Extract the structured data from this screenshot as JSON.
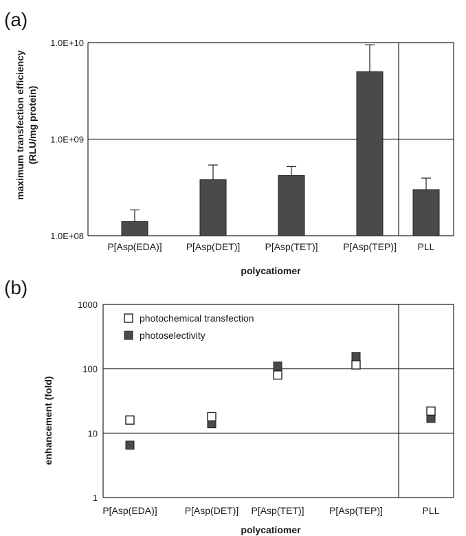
{
  "chart_data": [
    {
      "type": "bar",
      "panel_label": "(a)",
      "categories": [
        "P[Asp(EDA)]",
        "P[Asp(DET)]",
        "P[Asp(TET)]",
        "P[Asp(TEP)]",
        "PLL"
      ],
      "values": [
        140000000,
        380000000,
        420000000,
        5000000000,
        300000000
      ],
      "error_plus": [
        45000000,
        160000000,
        100000000,
        4500000000,
        95000000
      ],
      "xlabel": "polycatiomer",
      "ylabel_line1": "maximum transfection efficiency",
      "ylabel_line2": "(RLU/mg protein)",
      "yscale": "log",
      "ylim": [
        100000000,
        10000000000
      ],
      "yticks": [
        {
          "value": 100000000,
          "label": "1.0E+08"
        },
        {
          "value": 1000000000,
          "label": "1.0E+09"
        },
        {
          "value": 10000000000,
          "label": "1.0E+10"
        }
      ],
      "grid": true,
      "bar_color": "#4a4a4a"
    },
    {
      "type": "scatter",
      "panel_label": "(b)",
      "categories": [
        "P[Asp(EDA)]",
        "P[Asp(DET)]",
        "P[Asp(TET)]",
        "P[Asp(TEP)]",
        "PLL"
      ],
      "series": [
        {
          "name": "photochemical transfection",
          "values": [
            16,
            18,
            80,
            115,
            22
          ],
          "marker": "open-square"
        },
        {
          "name": "photoselectivity",
          "values": [
            6.5,
            14,
            110,
            155,
            17
          ],
          "marker": "filled-square"
        }
      ],
      "xlabel": "polycatiomer",
      "ylabel": "enhancement (fold)",
      "yscale": "log",
      "ylim": [
        1,
        1000
      ],
      "yticks": [
        {
          "value": 1,
          "label": "1"
        },
        {
          "value": 10,
          "label": "10"
        },
        {
          "value": 100,
          "label": "100"
        },
        {
          "value": 1000,
          "label": "1000"
        }
      ],
      "grid": true,
      "legend_position": "top-left",
      "marker_color": "#4a4a4a"
    }
  ]
}
